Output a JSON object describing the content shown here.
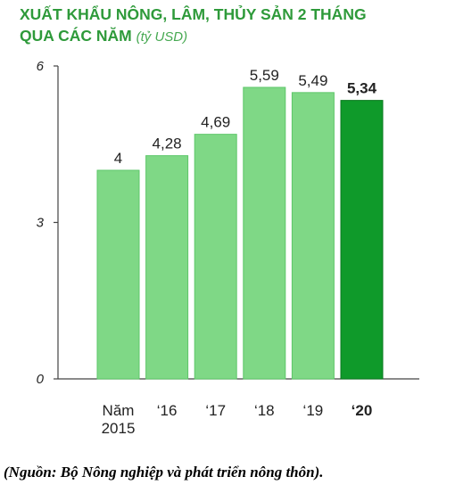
{
  "title": {
    "line1": "XUẤT KHẨU NÔNG, LÂM, THỦY SẢN 2 THÁNG",
    "line2": "QUA CÁC NĂM",
    "unit": "(tỷ USD)"
  },
  "chart_data": {
    "type": "bar",
    "categories": [
      [
        "Năm",
        "2015"
      ],
      [
        "‘16"
      ],
      [
        "‘17"
      ],
      [
        "‘18"
      ],
      [
        "‘19"
      ],
      [
        "‘20"
      ]
    ],
    "values": [
      4,
      4.28,
      4.69,
      5.59,
      5.49,
      5.34
    ],
    "value_labels": [
      "4",
      "4,28",
      "4,69",
      "5,59",
      "5,49",
      "5,34"
    ],
    "y_ticks": [
      "0",
      "3",
      "6"
    ],
    "ylim": [
      0,
      6
    ],
    "highlight_index": 5,
    "colors": {
      "bar": "#7fd886",
      "bar_edge": "#5ec76a",
      "highlight": "#0f9a2a",
      "highlight_edge": "#0a7a1f",
      "axis": "#444444",
      "text": "#222222"
    }
  },
  "source": "(Nguồn: Bộ Nông nghiệp và phát triển nông thôn)."
}
